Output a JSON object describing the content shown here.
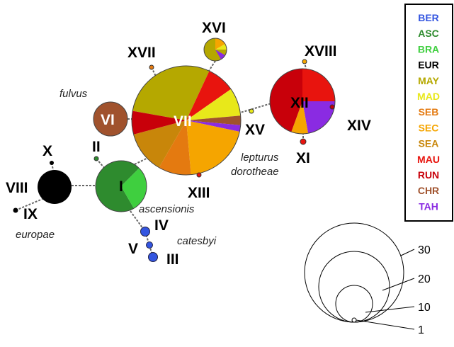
{
  "nodes": [
    {
      "label": "I"
    },
    {
      "label": "II"
    },
    {
      "label": "III"
    },
    {
      "label": "IV"
    },
    {
      "label": "V"
    },
    {
      "label": "VI"
    },
    {
      "label": "VII"
    },
    {
      "label": "VIII"
    },
    {
      "label": "IX"
    },
    {
      "label": "X"
    },
    {
      "label": "XI"
    },
    {
      "label": "XII"
    },
    {
      "label": "XIII"
    },
    {
      "label": "XIV"
    },
    {
      "label": "XV"
    },
    {
      "label": "XVI"
    },
    {
      "label": "XVII"
    },
    {
      "label": "XVIII"
    }
  ],
  "taxa": [
    "fulvus",
    "lepturus",
    "dorotheae",
    "ascensionis",
    "europae",
    "catesbyi"
  ],
  "legend": [
    {
      "code": "BER",
      "color": "#3355e0"
    },
    {
      "code": "ASC",
      "color": "#2e8b2e"
    },
    {
      "code": "BRA",
      "color": "#3fcf3f"
    },
    {
      "code": "EUR",
      "color": "#000000"
    },
    {
      "code": "MAY",
      "color": "#b5a800"
    },
    {
      "code": "MAD",
      "color": "#e8e81a"
    },
    {
      "code": "SEB",
      "color": "#e47a10"
    },
    {
      "code": "SEC",
      "color": "#f5a500"
    },
    {
      "code": "SEA",
      "color": "#c8860a"
    },
    {
      "code": "MAU",
      "color": "#e8140e"
    },
    {
      "code": "RUN",
      "color": "#c8000a"
    },
    {
      "code": "CHR",
      "color": "#a0522d"
    },
    {
      "code": "TAH",
      "color": "#8a2be2"
    }
  ],
  "scale": [
    "30",
    "20",
    "10",
    "1"
  ]
}
